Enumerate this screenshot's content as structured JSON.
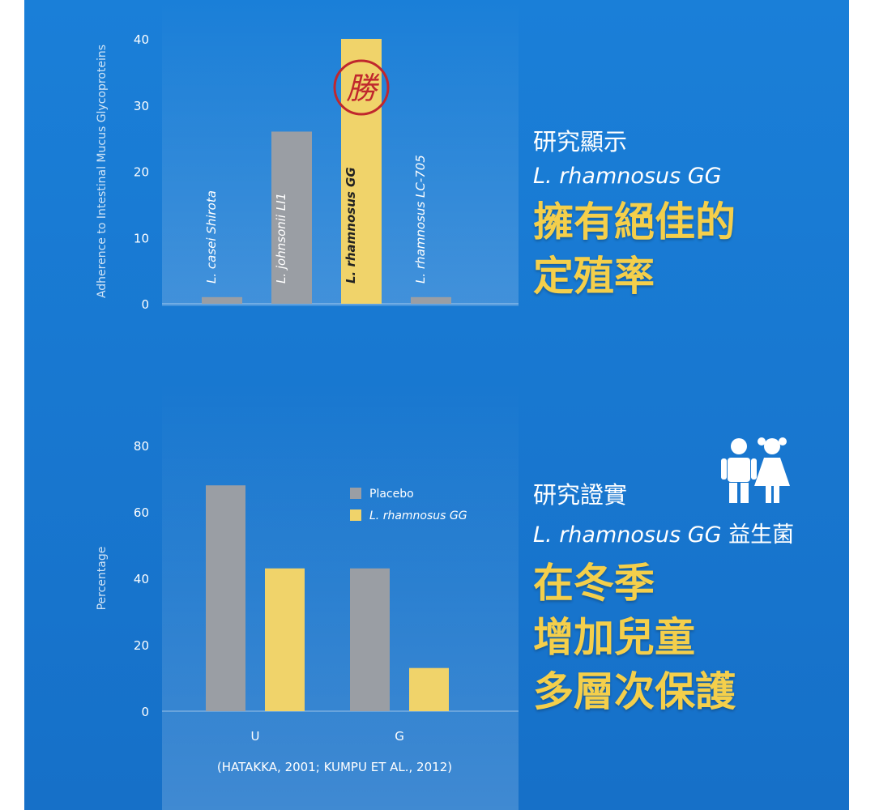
{
  "chart_data": [
    {
      "type": "bar",
      "ylabel": "Adherence to Intestinal Mucus Glycoproteins",
      "categories": [
        "L. casei Shirota",
        "L. johnsonii LI1",
        "L. rhamnosus GG",
        "L. rhamnosus LC-705"
      ],
      "values": [
        1,
        26,
        40,
        1
      ],
      "colors": [
        "#9a9ea4",
        "#9a9ea4",
        "#f0d36a",
        "#9a9ea4"
      ],
      "ylim": [
        0,
        40
      ],
      "yticks": [
        0,
        10,
        20,
        30,
        40
      ],
      "annotation": "勝"
    },
    {
      "type": "grouped_bar",
      "ylabel": "Percentage",
      "categories": [
        "U",
        "G"
      ],
      "series": [
        {
          "name": "Placebo",
          "color": "#9a9ea4",
          "values": [
            68,
            43
          ]
        },
        {
          "name": "L. rhamnosus GG",
          "color": "#f0d36a",
          "values": [
            43,
            13
          ]
        }
      ],
      "ylim": [
        0,
        80
      ],
      "yticks": [
        0,
        20,
        40,
        60,
        80
      ],
      "source": "(HATAKKA, 2001; KUMPU ET AL., 2012)"
    }
  ],
  "panels": [
    {
      "lead": "研究顯示",
      "subtitle_italic": "L. rhamnosus GG",
      "lines": [
        "擁有絕佳的",
        "定殖率"
      ]
    },
    {
      "lead": "研究證實",
      "subtitle_italic": "L. rhamnosus GG",
      "subtitle_rest": "益生菌",
      "lines": [
        "在冬季",
        "增加兒童",
        "多層次保護"
      ]
    }
  ]
}
